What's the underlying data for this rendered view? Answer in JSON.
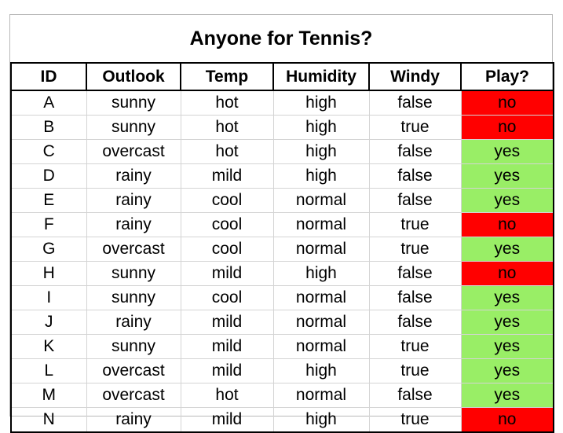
{
  "title": "Anyone for Tennis?",
  "colors": {
    "no": "#ff0000",
    "yes": "#99ee66"
  },
  "columns": [
    "ID",
    "Outlook",
    "Temp",
    "Humidity",
    "Windy",
    "Play?"
  ],
  "rows": [
    [
      "A",
      "sunny",
      "hot",
      "high",
      "false",
      "no"
    ],
    [
      "B",
      "sunny",
      "hot",
      "high",
      "true",
      "no"
    ],
    [
      "C",
      "overcast",
      "hot",
      "high",
      "false",
      "yes"
    ],
    [
      "D",
      "rainy",
      "mild",
      "high",
      "false",
      "yes"
    ],
    [
      "E",
      "rainy",
      "cool",
      "normal",
      "false",
      "yes"
    ],
    [
      "F",
      "rainy",
      "cool",
      "normal",
      "true",
      "no"
    ],
    [
      "G",
      "overcast",
      "cool",
      "normal",
      "true",
      "yes"
    ],
    [
      "H",
      "sunny",
      "mild",
      "high",
      "false",
      "no"
    ],
    [
      "I",
      "sunny",
      "cool",
      "normal",
      "false",
      "yes"
    ],
    [
      "J",
      "rainy",
      "mild",
      "normal",
      "false",
      "yes"
    ],
    [
      "K",
      "sunny",
      "mild",
      "normal",
      "true",
      "yes"
    ],
    [
      "L",
      "overcast",
      "mild",
      "high",
      "true",
      "yes"
    ],
    [
      "M",
      "overcast",
      "hot",
      "normal",
      "false",
      "yes"
    ],
    [
      "N",
      "rainy",
      "mild",
      "high",
      "true",
      "no"
    ]
  ]
}
